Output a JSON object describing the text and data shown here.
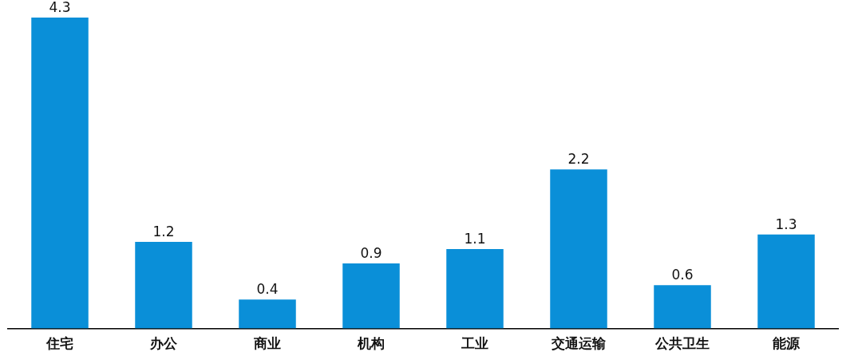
{
  "chart_data": {
    "type": "bar",
    "categories": [
      "住宅",
      "办公",
      "商业",
      "机构",
      "工业",
      "交通运输",
      "公共卫生",
      "能源"
    ],
    "values": [
      4.3,
      1.2,
      0.4,
      0.9,
      1.1,
      2.2,
      0.6,
      1.3
    ],
    "color": "#0a8fd8",
    "data_labels": true,
    "grid": false,
    "legend": false
  }
}
